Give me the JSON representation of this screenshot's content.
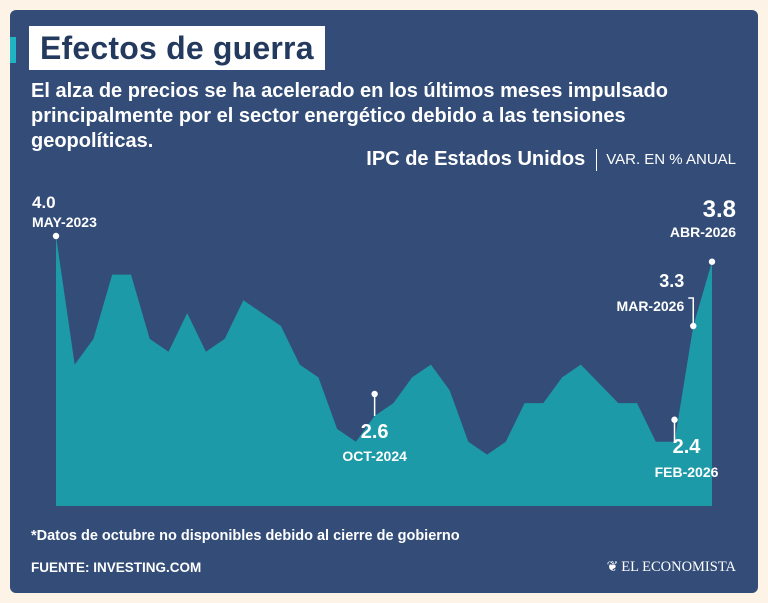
{
  "header": {
    "title": "Efectos de guerra",
    "subtitle": "El alza de precios se ha acelerado en los últimos meses impulsado principalmente por el sector energético debido a las tensiones geopolíticas."
  },
  "chart_header": {
    "title": "IPC de Estados Unidos",
    "unit": "VAR. EN % ANUAL"
  },
  "chart_data": {
    "type": "area",
    "title": "IPC de Estados Unidos",
    "ylabel": "VAR. EN % ANUAL",
    "x_range": [
      "2023-05",
      "2026-04"
    ],
    "ylim": [
      0,
      4.0
    ],
    "grid": false,
    "color": "#1d9aa8",
    "points": [
      {
        "x": "2023-05",
        "y": 4.0
      },
      {
        "x": "2023-06",
        "y": 3.0
      },
      {
        "x": "2023-07",
        "y": 3.2
      },
      {
        "x": "2023-08",
        "y": 3.7
      },
      {
        "x": "2023-09",
        "y": 3.7
      },
      {
        "x": "2023-10",
        "y": 3.2
      },
      {
        "x": "2023-11",
        "y": 3.1
      },
      {
        "x": "2023-12",
        "y": 3.4
      },
      {
        "x": "2024-01",
        "y": 3.1
      },
      {
        "x": "2024-02",
        "y": 3.2
      },
      {
        "x": "2024-03",
        "y": 3.5
      },
      {
        "x": "2024-04",
        "y": 3.4
      },
      {
        "x": "2024-05",
        "y": 3.3
      },
      {
        "x": "2024-06",
        "y": 3.0
      },
      {
        "x": "2024-07",
        "y": 2.9
      },
      {
        "x": "2024-08",
        "y": 2.5
      },
      {
        "x": "2024-09",
        "y": 2.4
      },
      {
        "x": "2024-10",
        "y": 2.6
      },
      {
        "x": "2024-11",
        "y": 2.7
      },
      {
        "x": "2024-12",
        "y": 2.9
      },
      {
        "x": "2025-01",
        "y": 3.0
      },
      {
        "x": "2025-02",
        "y": 2.8
      },
      {
        "x": "2025-03",
        "y": 2.4
      },
      {
        "x": "2025-04",
        "y": 2.3
      },
      {
        "x": "2025-05",
        "y": 2.4
      },
      {
        "x": "2025-06",
        "y": 2.7
      },
      {
        "x": "2025-07",
        "y": 2.7
      },
      {
        "x": "2025-08",
        "y": 2.9
      },
      {
        "x": "2025-09",
        "y": 3.0
      },
      {
        "x": "2025-11",
        "y": 2.7
      },
      {
        "x": "2025-12",
        "y": 2.7
      },
      {
        "x": "2026-01",
        "y": 2.4
      },
      {
        "x": "2026-02",
        "y": 2.4
      },
      {
        "x": "2026-03",
        "y": 3.3
      },
      {
        "x": "2026-04",
        "y": 3.8
      }
    ],
    "annotations": [
      {
        "x": "2023-05",
        "value": "4.0",
        "date": "MAY-2023"
      },
      {
        "x": "2024-10",
        "value": "2.6",
        "date": "OCT-2024"
      },
      {
        "x": "2026-02",
        "value": "2.4",
        "date": "FEB-2026"
      },
      {
        "x": "2026-03",
        "value": "3.3",
        "date": "MAR-2026"
      },
      {
        "x": "2026-04",
        "value": "3.8",
        "date": "ABR-2026"
      }
    ]
  },
  "footer": {
    "note": "*Datos de octubre no disponibles debido al cierre de gobierno",
    "source": "FUENTE: INVESTING.COM",
    "brand": "EL ECONOMISTA",
    "brand_icon": "eagle-logo-icon"
  },
  "colors": {
    "background": "#334d78",
    "page": "#fdf3e6",
    "area": "#1d9aa8",
    "accent": "#1fb3c4",
    "text": "#ffffff"
  }
}
